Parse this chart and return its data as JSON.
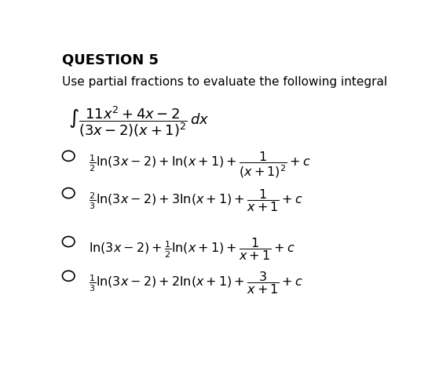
{
  "title": "QUESTION 5",
  "instruction": "Use partial fractions to evaluate the following integral",
  "background_color": "#ffffff",
  "text_color": "#000000",
  "circle_color": "#000000",
  "title_fontsize": 13,
  "body_fontsize": 11
}
